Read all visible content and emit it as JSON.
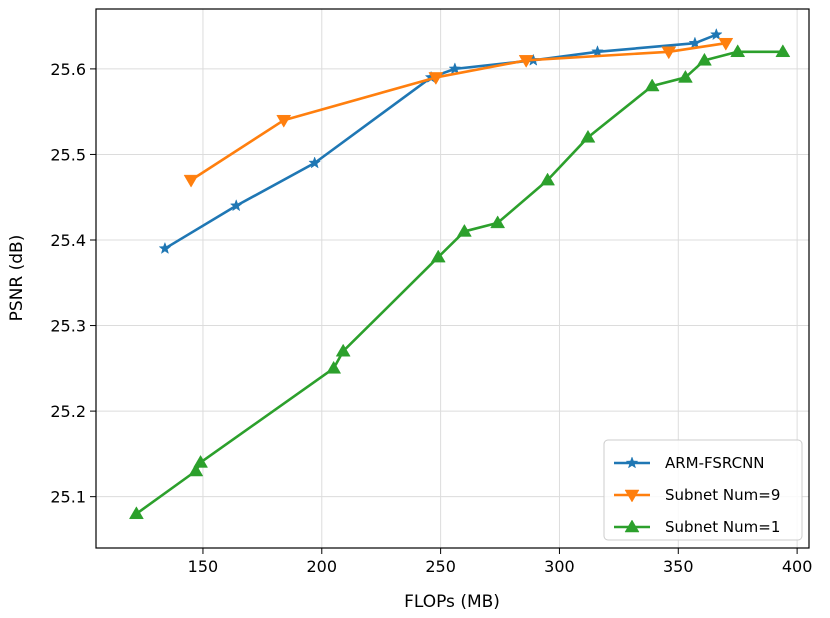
{
  "chart_data": {
    "type": "line",
    "title": "",
    "xlabel": "FLOPs (MB)",
    "ylabel": "PSNR (dB)",
    "xlim": [
      105,
      405
    ],
    "ylim": [
      25.04,
      25.67
    ],
    "xticks": [
      150,
      200,
      250,
      300,
      350,
      400
    ],
    "yticks": [
      25.1,
      25.2,
      25.3,
      25.4,
      25.5,
      25.6
    ],
    "grid": true,
    "legend_position": "lower-right",
    "series": [
      {
        "name": "ARM-FSRCNN",
        "color": "#1f77b4",
        "marker": "star",
        "x": [
          134,
          164,
          197,
          246,
          256,
          289,
          316,
          357,
          366
        ],
        "y": [
          25.39,
          25.44,
          25.49,
          25.59,
          25.6,
          25.61,
          25.62,
          25.63,
          25.64
        ]
      },
      {
        "name": "Subnet Num=9",
        "color": "#ff7f0e",
        "marker": "triangle-down",
        "x": [
          145,
          184,
          248,
          286,
          346,
          370
        ],
        "y": [
          25.47,
          25.54,
          25.59,
          25.61,
          25.62,
          25.63
        ]
      },
      {
        "name": "Subnet Num=1",
        "color": "#2ca02c",
        "marker": "triangle-up",
        "x": [
          122,
          147,
          149,
          205,
          209,
          249,
          260,
          274,
          295,
          312,
          339,
          353,
          361,
          375,
          394
        ],
        "y": [
          25.08,
          25.13,
          25.14,
          25.25,
          25.27,
          25.38,
          25.41,
          25.42,
          25.47,
          25.52,
          25.58,
          25.59,
          25.61,
          25.62,
          25.62
        ]
      }
    ]
  }
}
